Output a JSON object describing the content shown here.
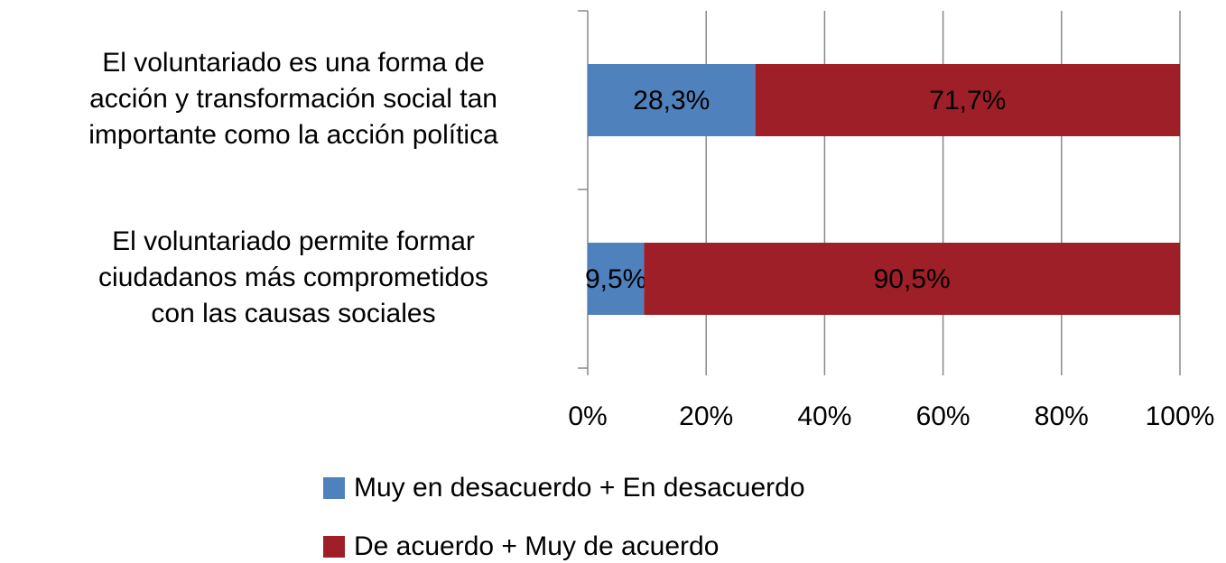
{
  "chart_data": {
    "type": "stacked-bar-horizontal",
    "categories": [
      "El voluntariado es una forma de\nacción y transformación social tan\nimportante como la acción política",
      "El voluntariado permite formar\nciudadanos más comprometidos\ncon las causas sociales"
    ],
    "series": [
      {
        "name": "Muy en desacuerdo + En desacuerdo",
        "color": "#4f81bd",
        "values": [
          28.3,
          9.5
        ],
        "value_labels": [
          "28,3%",
          "9,5%"
        ]
      },
      {
        "name": "De acuerdo + Muy de acuerdo",
        "color": "#9e1f27",
        "values": [
          71.7,
          90.5
        ],
        "value_labels": [
          "71,7%",
          "90,5%"
        ]
      }
    ],
    "xlim": [
      0,
      100
    ],
    "xticks": [
      {
        "value": 0,
        "label": "0%"
      },
      {
        "value": 20,
        "label": "20%"
      },
      {
        "value": 40,
        "label": "40%"
      },
      {
        "value": 60,
        "label": "60%"
      },
      {
        "value": 80,
        "label": "80%"
      },
      {
        "value": 100,
        "label": "100%"
      }
    ],
    "grid": true,
    "legend": "bottom"
  }
}
